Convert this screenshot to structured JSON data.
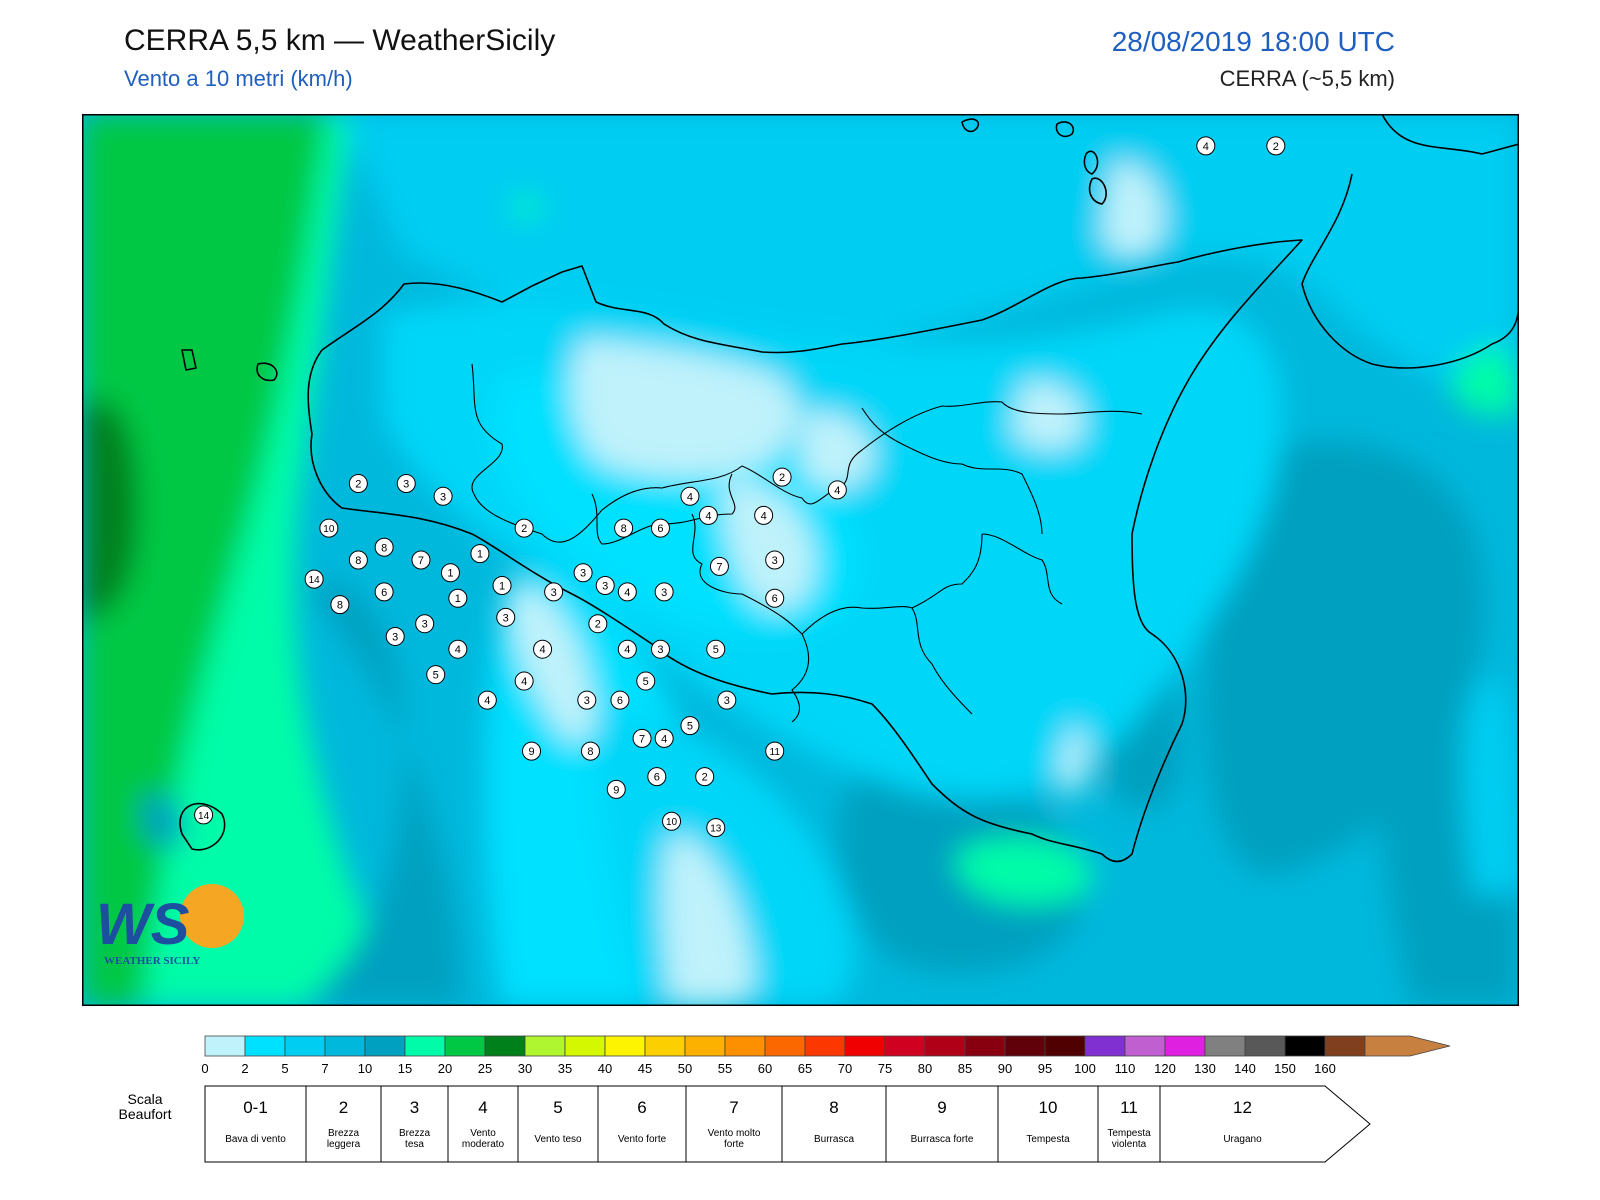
{
  "header": {
    "title": "CERRA 5,5 km — WeatherSicily",
    "subtitle": "Vento a 10 metri (km/h)",
    "datetime": "28/08/2019 18:00 UTC",
    "model": "CERRA (~5,5 km)"
  },
  "logo": {
    "text": "WEATHER SICILY"
  },
  "colorscale": {
    "ticks": [
      "0",
      "2",
      "5",
      "7",
      "10",
      "15",
      "20",
      "25",
      "30",
      "35",
      "40",
      "45",
      "50",
      "55",
      "60",
      "65",
      "70",
      "75",
      "80",
      "85",
      "90",
      "95",
      "100",
      "110",
      "120",
      "130",
      "140",
      "150",
      "160"
    ],
    "colors": [
      "#bff2fb",
      "#00e0ff",
      "#00cdf2",
      "#00b8dc",
      "#00a0c0",
      "#00fca8",
      "#00c844",
      "#00801a",
      "#b0f630",
      "#d4f800",
      "#fcf400",
      "#fcd000",
      "#fcb000",
      "#fc9000",
      "#fc6800",
      "#fc3800",
      "#f00000",
      "#d00020",
      "#b00018",
      "#880010",
      "#600008",
      "#500000",
      "#8030d0",
      "#c060d0",
      "#e020e0",
      "#808080",
      "#585858",
      "#000000",
      "#804020",
      "#c88040"
    ]
  },
  "beaufort": {
    "label": "Scala Beaufort",
    "levels": [
      {
        "force": "0-1",
        "name": "Bava di vento"
      },
      {
        "force": "2",
        "name": "Brezza leggera"
      },
      {
        "force": "3",
        "name": "Brezza tesa"
      },
      {
        "force": "4",
        "name": "Vento moderato"
      },
      {
        "force": "5",
        "name": "Vento teso"
      },
      {
        "force": "6",
        "name": "Vento forte"
      },
      {
        "force": "7",
        "name": "Vento molto forte"
      },
      {
        "force": "8",
        "name": "Burrasca"
      },
      {
        "force": "9",
        "name": "Burrasca forte"
      },
      {
        "force": "10",
        "name": "Tempesta"
      },
      {
        "force": "11",
        "name": "Tempesta violenta"
      },
      {
        "force": "12",
        "name": "Uragano"
      }
    ]
  },
  "stations": [
    {
      "v": "4",
      "lon": 15.05,
      "lat": 38.7
    },
    {
      "v": "2",
      "lon": 15.24,
      "lat": 38.7
    },
    {
      "v": "2",
      "lon": 12.75,
      "lat": 38.17
    },
    {
      "v": "3",
      "lon": 12.88,
      "lat": 38.17
    },
    {
      "v": "3",
      "lon": 12.98,
      "lat": 38.15
    },
    {
      "v": "10",
      "lon": 12.67,
      "lat": 38.1
    },
    {
      "v": "8",
      "lon": 12.82,
      "lat": 38.07
    },
    {
      "v": "14",
      "lon": 12.63,
      "lat": 38.02
    },
    {
      "v": "8",
      "lon": 12.75,
      "lat": 38.05
    },
    {
      "v": "7",
      "lon": 12.92,
      "lat": 38.05
    },
    {
      "v": "6",
      "lon": 12.82,
      "lat": 38.0
    },
    {
      "v": "8",
      "lon": 12.7,
      "lat": 37.98
    },
    {
      "v": "1",
      "lon": 13.0,
      "lat": 38.03
    },
    {
      "v": "1",
      "lon": 13.08,
      "lat": 38.06
    },
    {
      "v": "1",
      "lon": 13.14,
      "lat": 38.01
    },
    {
      "v": "1",
      "lon": 13.02,
      "lat": 37.99
    },
    {
      "v": "2",
      "lon": 13.2,
      "lat": 38.1
    },
    {
      "v": "3",
      "lon": 13.28,
      "lat": 38.0
    },
    {
      "v": "3",
      "lon": 13.36,
      "lat": 38.03
    },
    {
      "v": "3",
      "lon": 13.42,
      "lat": 38.01
    },
    {
      "v": "8",
      "lon": 13.47,
      "lat": 38.1
    },
    {
      "v": "6",
      "lon": 13.57,
      "lat": 38.1
    },
    {
      "v": "4",
      "lon": 13.65,
      "lat": 38.15
    },
    {
      "v": "4",
      "lon": 13.7,
      "lat": 38.12
    },
    {
      "v": "4",
      "lon": 13.85,
      "lat": 38.12
    },
    {
      "v": "2",
      "lon": 13.9,
      "lat": 38.18
    },
    {
      "v": "4",
      "lon": 14.05,
      "lat": 38.16
    },
    {
      "v": "3",
      "lon": 13.88,
      "lat": 38.05
    },
    {
      "v": "7",
      "lon": 13.73,
      "lat": 38.04
    },
    {
      "v": "3",
      "lon": 13.58,
      "lat": 38.0
    },
    {
      "v": "4",
      "lon": 13.48,
      "lat": 38.0
    },
    {
      "v": "6",
      "lon": 13.88,
      "lat": 37.99
    },
    {
      "v": "2",
      "lon": 13.4,
      "lat": 37.95
    },
    {
      "v": "3",
      "lon": 13.15,
      "lat": 37.96
    },
    {
      "v": "3",
      "lon": 12.93,
      "lat": 37.95
    },
    {
      "v": "3",
      "lon": 12.85,
      "lat": 37.93
    },
    {
      "v": "4",
      "lon": 13.02,
      "lat": 37.91
    },
    {
      "v": "4",
      "lon": 13.25,
      "lat": 37.91
    },
    {
      "v": "4",
      "lon": 13.48,
      "lat": 37.91
    },
    {
      "v": "3",
      "lon": 13.57,
      "lat": 37.91
    },
    {
      "v": "5",
      "lon": 13.72,
      "lat": 37.91
    },
    {
      "v": "5",
      "lon": 12.96,
      "lat": 37.87
    },
    {
      "v": "4",
      "lon": 13.2,
      "lat": 37.86
    },
    {
      "v": "5",
      "lon": 13.53,
      "lat": 37.86
    },
    {
      "v": "4",
      "lon": 13.1,
      "lat": 37.83
    },
    {
      "v": "3",
      "lon": 13.37,
      "lat": 37.83
    },
    {
      "v": "6",
      "lon": 13.46,
      "lat": 37.83
    },
    {
      "v": "3",
      "lon": 13.75,
      "lat": 37.83
    },
    {
      "v": "5",
      "lon": 13.65,
      "lat": 37.79
    },
    {
      "v": "7",
      "lon": 13.52,
      "lat": 37.77
    },
    {
      "v": "4",
      "lon": 13.58,
      "lat": 37.77
    },
    {
      "v": "11",
      "lon": 13.88,
      "lat": 37.75
    },
    {
      "v": "9",
      "lon": 13.22,
      "lat": 37.75
    },
    {
      "v": "8",
      "lon": 13.38,
      "lat": 37.75
    },
    {
      "v": "6",
      "lon": 13.56,
      "lat": 37.71
    },
    {
      "v": "2",
      "lon": 13.69,
      "lat": 37.71
    },
    {
      "v": "9",
      "lon": 13.45,
      "lat": 37.69
    },
    {
      "v": "10",
      "lon": 13.6,
      "lat": 37.64
    },
    {
      "v": "13",
      "lon": 13.72,
      "lat": 37.63
    },
    {
      "v": "14",
      "lon": 12.33,
      "lat": 37.65
    }
  ]
}
